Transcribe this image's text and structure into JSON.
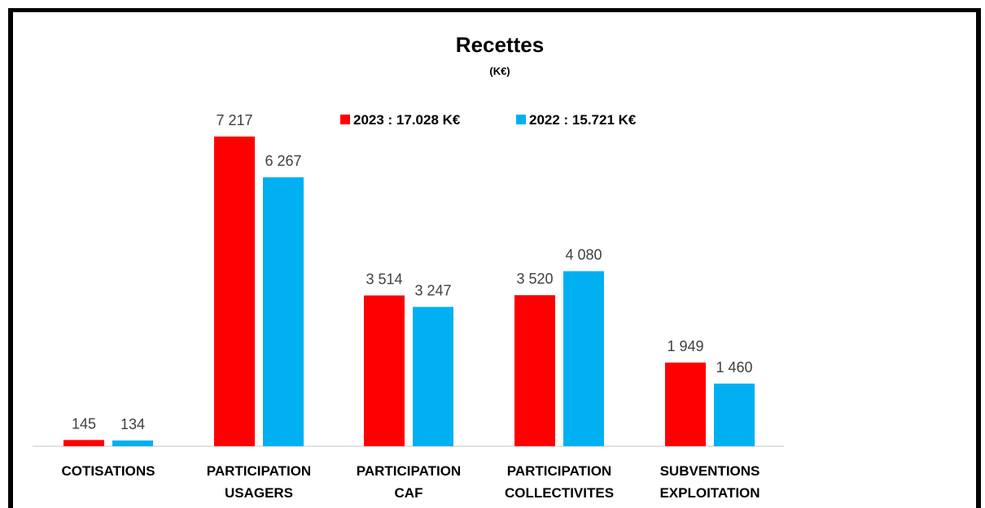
{
  "chart_data": {
    "type": "bar",
    "title": "Recettes",
    "subtitle": "(K€)",
    "categories": [
      [
        "COTISATIONS"
      ],
      [
        "PARTICIPATION",
        "USAGERS"
      ],
      [
        "PARTICIPATION",
        "CAF"
      ],
      [
        "PARTICIPATION",
        "COLLECTIVITES"
      ],
      [
        "SUBVENTIONS",
        "EXPLOITATION"
      ]
    ],
    "series": [
      {
        "name": "2023 : 17.028 K€",
        "color": "#ff0000",
        "values": [
          145,
          7217,
          3514,
          3520,
          1949
        ],
        "labels": [
          "145",
          "7 217",
          "3 514",
          "3 520",
          "1 949"
        ]
      },
      {
        "name": "2022 : 15.721 K€",
        "color": "#00b0f0",
        "values": [
          134,
          6267,
          3247,
          4080,
          1460
        ],
        "labels": [
          "134",
          "6 267",
          "3 247",
          "4 080",
          "1 460"
        ]
      }
    ],
    "ylim": [
      0,
      7217
    ],
    "legend_position": "top-center",
    "grid": false
  }
}
